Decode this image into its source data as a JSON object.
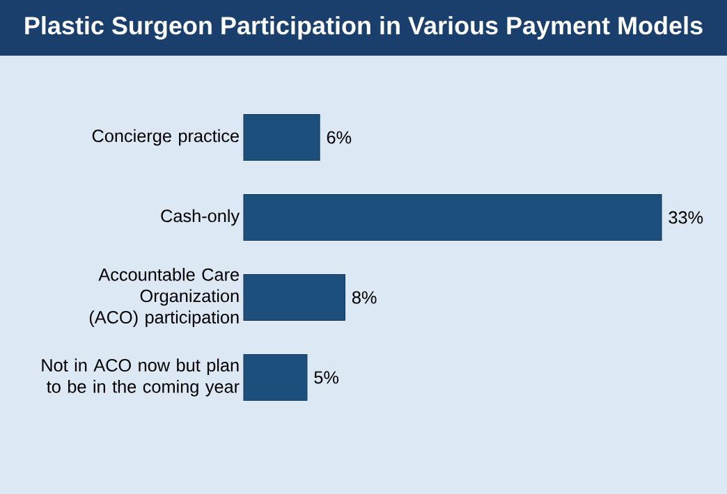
{
  "chart_data": {
    "type": "bar",
    "orientation": "horizontal",
    "title": "Plastic Surgeon Participation in Various Payment Models",
    "categories": [
      "Concierge practice",
      "Cash-only",
      "Accountable Care Organization (ACO) participation",
      "Not in ACO now but plan to be in the coming year"
    ],
    "values": [
      6,
      33,
      8,
      5
    ],
    "color": "#1d4f7c",
    "value_labels": [
      "6%",
      "33%",
      "8%",
      "5%"
    ]
  }
}
